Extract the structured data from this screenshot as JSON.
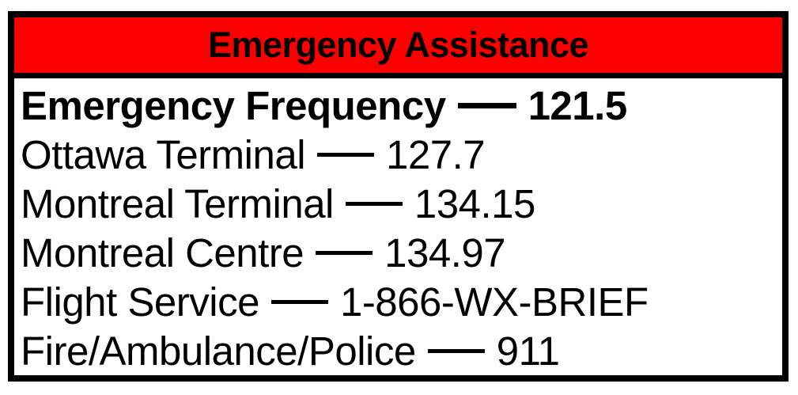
{
  "table": {
    "title": "Emergency Assistance",
    "rows": [
      {
        "label": "Emergency Frequency",
        "value": "121.5",
        "emphasis": true
      },
      {
        "label": "Ottawa Terminal",
        "value": "127.7",
        "emphasis": false
      },
      {
        "label": "Montreal Terminal",
        "value": "134.15",
        "emphasis": false
      },
      {
        "label": "Montreal Centre",
        "value": "134.97",
        "emphasis": false
      },
      {
        "label": "Flight Service",
        "value": "1-866-WX-BRIEF",
        "emphasis": false
      },
      {
        "label": "Fire/Ambulance/Police",
        "value": "911",
        "emphasis": false
      }
    ],
    "separator": "—",
    "colors": {
      "header_bg": "#fc0000",
      "border": "#000000",
      "text": "#000000",
      "body_bg": "#ffffff"
    }
  }
}
